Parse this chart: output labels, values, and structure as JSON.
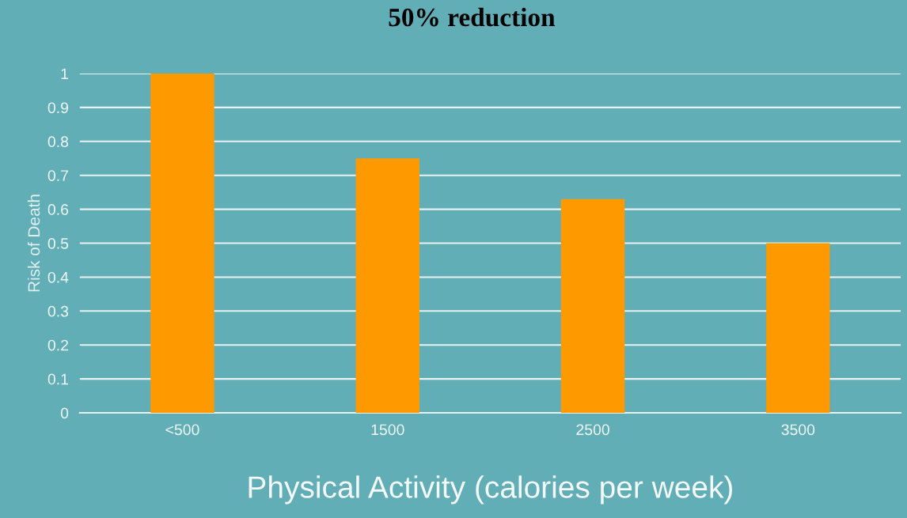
{
  "chart_data": {
    "type": "bar",
    "title": "50% reduction",
    "xlabel": "Physical Activity (calories per week)",
    "ylabel": "Risk of Death",
    "categories": [
      "<500",
      "1500",
      "2500",
      "3500"
    ],
    "values": [
      1,
      0.75,
      0.63,
      0.5
    ],
    "color": "#ff9900",
    "ylim": [
      0,
      1
    ],
    "yticks": [
      0,
      0.1,
      0.2,
      0.3,
      0.4,
      0.5,
      0.6,
      0.7,
      0.8,
      0.9,
      1
    ],
    "grid": "y",
    "legend": false
  }
}
